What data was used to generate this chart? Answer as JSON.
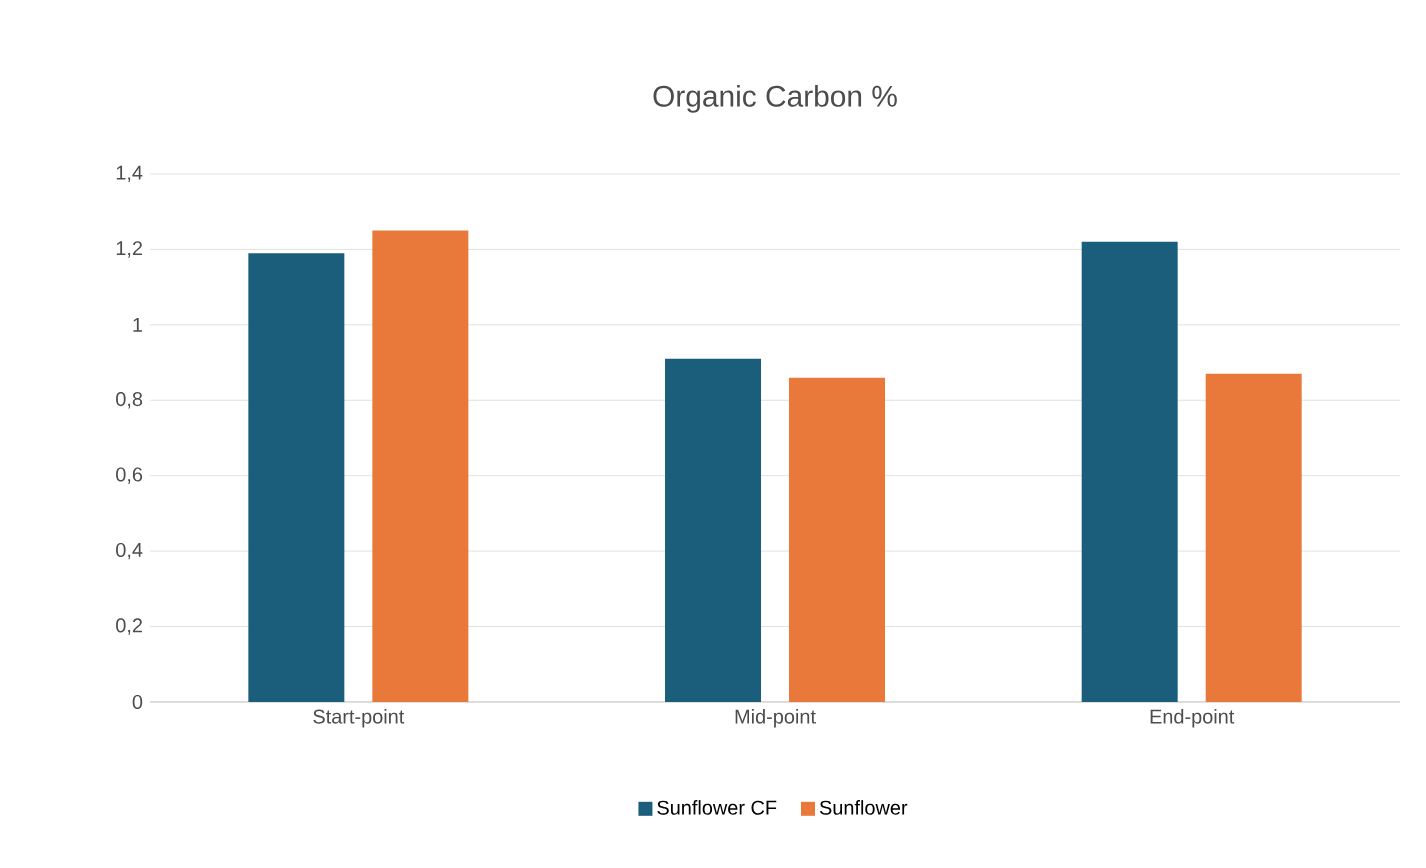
{
  "chart_data": {
    "type": "bar",
    "title": "Organic Carbon %",
    "categories": [
      "Start-point",
      "Mid-point",
      "End-point"
    ],
    "series": [
      {
        "name": "Sunflower CF",
        "color": "#1b5e7b",
        "values": [
          1.19,
          0.91,
          1.22
        ]
      },
      {
        "name": "Sunflower",
        "color": "#e8793a",
        "values": [
          1.25,
          0.86,
          0.87
        ]
      }
    ],
    "ylim": [
      0,
      1.4
    ],
    "yticks": [
      0,
      {
        "value": 0.2,
        "label": "0,2"
      },
      {
        "value": 0.4,
        "label": "0,4"
      },
      {
        "value": 0.6,
        "label": "0,6"
      },
      {
        "value": 0.8,
        "label": "0,8"
      },
      1,
      {
        "value": 1.2,
        "label": "1,2"
      },
      {
        "value": 1.4,
        "label": "1,4"
      }
    ],
    "grid": "y",
    "legend": "bottom"
  }
}
